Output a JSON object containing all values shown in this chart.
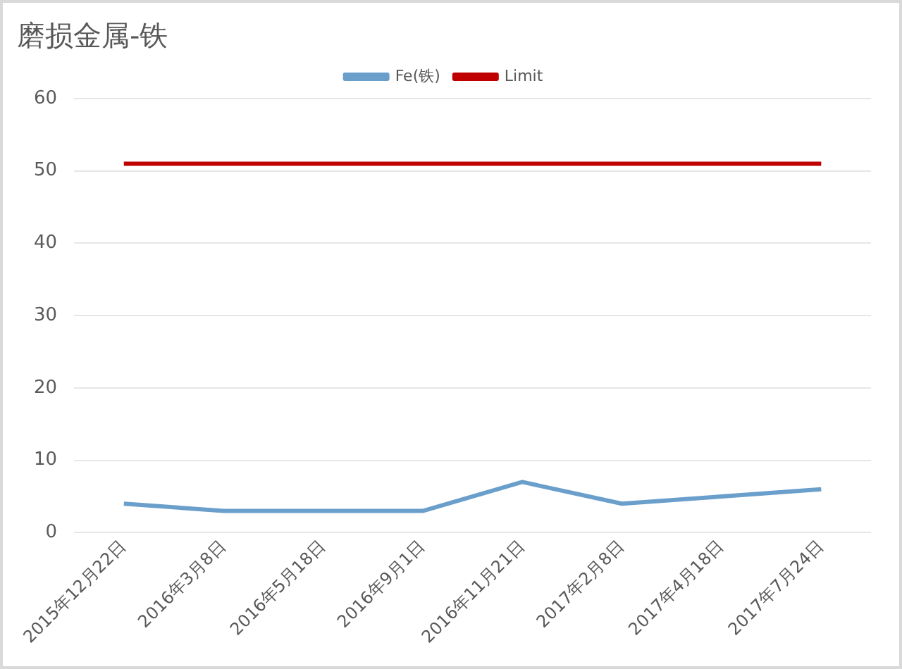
{
  "chart_data": {
    "type": "line",
    "title": "磨损金属-铁",
    "categories": [
      "2015年12月22日",
      "2016年3月8日",
      "2016年5月18日",
      "2016年9月1日",
      "2016年11月21日",
      "2017年2月8日",
      "2017年4月18日",
      "2017年7月24日"
    ],
    "series": [
      {
        "name": "Fe(铁)",
        "color": "#6a9fcb",
        "values": [
          4,
          3,
          3,
          3,
          7,
          4,
          5,
          6
        ]
      },
      {
        "name": "Limit",
        "color": "#c00000",
        "values": [
          51,
          51,
          51,
          51,
          51,
          51,
          51,
          51
        ]
      }
    ],
    "ylim": [
      0,
      60
    ],
    "yticks": [
      0,
      10,
      20,
      30,
      40,
      50,
      60
    ],
    "grid": "y",
    "legend": "top",
    "marker": "none",
    "line_style": "solid"
  }
}
